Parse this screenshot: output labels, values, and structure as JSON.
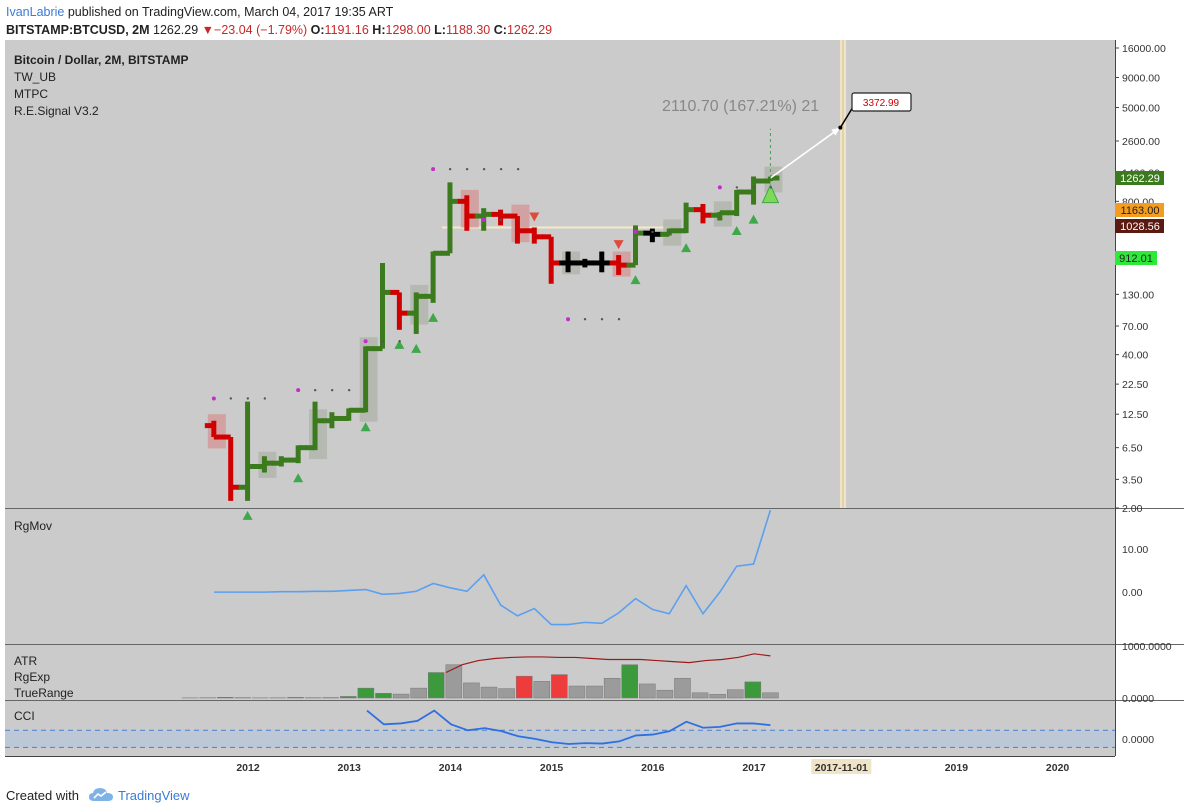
{
  "header": {
    "author": "IvanLabrie",
    "published_text": "published on TradingView.com, March 04, 2017 19:35 ART",
    "symbol": "BITSTAMP:BTCUSD, 2M",
    "last": "1262.29",
    "change": "−23.04 (−1.79%)",
    "o_label": "O:",
    "o_val": "1191.16",
    "h_label": "H:",
    "h_val": "1298.00",
    "l_label": "L:",
    "l_val": "1188.30",
    "c_label": "C:",
    "c_val": "1262.29"
  },
  "colors": {
    "background": "#cbcbcb",
    "bull": "#3c7a1e",
    "bear": "#d10000",
    "neutral": "#000000",
    "rgmov_line": "#5aa0f0",
    "atr_line": "#9b1b1b",
    "vertical_marker": "#efe3c8",
    "author": "#3a7bd5"
  },
  "chart_data": [
    {
      "type": "bar",
      "name": "main",
      "legend": [
        "Bitcoin / Dollar, 2M, BITSTAMP",
        "TW_UB",
        "MTPC",
        "R.E.Signal V3.2"
      ],
      "y_scale": "log",
      "ylim": [
        2,
        16000
      ],
      "y_ticks": [
        "16000.00",
        "9000.00",
        "5000.00",
        "2600.00",
        "1400.00",
        "800.00",
        "130.00",
        "70.00",
        "40.00",
        "22.50",
        "12.50",
        "6.50",
        "3.50",
        "2.00"
      ],
      "x_ticks": [
        "2012",
        "2013",
        "2014",
        "2015",
        "2016",
        "2017",
        "2017-11-01",
        "2019",
        "2020"
      ],
      "price_labels": {
        "last": "1262.29",
        "level1": "1163.00",
        "level2": "1028.56",
        "level3": "912.01"
      },
      "projection": {
        "text": "2110.70 (167.21%) 21",
        "target": "3372.99"
      },
      "bars": [
        {
          "d": "2011-08",
          "o": 10,
          "h": 11,
          "l": 8,
          "c": 8
        },
        {
          "d": "2011-10",
          "o": 8,
          "h": 8,
          "l": 2.3,
          "c": 3
        },
        {
          "d": "2011-12",
          "o": 3,
          "h": 16,
          "l": 2.3,
          "c": 4.5
        },
        {
          "d": "2012-02",
          "o": 4.5,
          "h": 5.5,
          "l": 4,
          "c": 4.8
        },
        {
          "d": "2012-04",
          "o": 4.8,
          "h": 5.5,
          "l": 4.5,
          "c": 5.1
        },
        {
          "d": "2012-06",
          "o": 5.1,
          "h": 6.8,
          "l": 4.8,
          "c": 6.5
        },
        {
          "d": "2012-08",
          "o": 6.5,
          "h": 16,
          "l": 6.2,
          "c": 11
        },
        {
          "d": "2012-10",
          "o": 11,
          "h": 13,
          "l": 9.5,
          "c": 11.5
        },
        {
          "d": "2012-12",
          "o": 11.5,
          "h": 14,
          "l": 11,
          "c": 13.5
        },
        {
          "d": "2013-02",
          "o": 13.5,
          "h": 47,
          "l": 13,
          "c": 45
        },
        {
          "d": "2013-04",
          "o": 45,
          "h": 240,
          "l": 45,
          "c": 135
        },
        {
          "d": "2013-06",
          "o": 135,
          "h": 135,
          "l": 65,
          "c": 90
        },
        {
          "d": "2013-08",
          "o": 90,
          "h": 135,
          "l": 60,
          "c": 125
        },
        {
          "d": "2013-10",
          "o": 125,
          "h": 300,
          "l": 110,
          "c": 290
        },
        {
          "d": "2013-12",
          "o": 290,
          "h": 1160,
          "l": 290,
          "c": 800
        },
        {
          "d": "2014-02",
          "o": 800,
          "h": 900,
          "l": 450,
          "c": 600
        },
        {
          "d": "2014-04",
          "o": 600,
          "h": 700,
          "l": 450,
          "c": 620
        },
        {
          "d": "2014-06",
          "o": 620,
          "h": 680,
          "l": 500,
          "c": 600
        },
        {
          "d": "2014-08",
          "o": 600,
          "h": 600,
          "l": 350,
          "c": 450
        },
        {
          "d": "2014-10",
          "o": 450,
          "h": 480,
          "l": 350,
          "c": 400
        },
        {
          "d": "2014-12",
          "o": 400,
          "h": 400,
          "l": 160,
          "c": 240
        },
        {
          "d": "2015-02",
          "o": 240,
          "h": 300,
          "l": 200,
          "c": 240
        },
        {
          "d": "2015-04",
          "o": 240,
          "h": 260,
          "l": 220,
          "c": 240
        },
        {
          "d": "2015-06",
          "o": 240,
          "h": 300,
          "l": 200,
          "c": 240
        },
        {
          "d": "2015-08",
          "o": 240,
          "h": 280,
          "l": 190,
          "c": 230
        },
        {
          "d": "2015-10",
          "o": 230,
          "h": 500,
          "l": 230,
          "c": 430
        },
        {
          "d": "2015-12",
          "o": 430,
          "h": 470,
          "l": 360,
          "c": 420
        },
        {
          "d": "2016-02",
          "o": 420,
          "h": 470,
          "l": 410,
          "c": 450
        },
        {
          "d": "2016-04",
          "o": 450,
          "h": 780,
          "l": 430,
          "c": 680
        },
        {
          "d": "2016-06",
          "o": 680,
          "h": 760,
          "l": 520,
          "c": 610
        },
        {
          "d": "2016-08",
          "o": 610,
          "h": 650,
          "l": 550,
          "c": 640
        },
        {
          "d": "2016-10",
          "o": 640,
          "h": 1000,
          "l": 600,
          "c": 960
        },
        {
          "d": "2016-12",
          "o": 960,
          "h": 1300,
          "l": 750,
          "c": 1190
        },
        {
          "d": "2017-02",
          "o": 1190,
          "h": 1298,
          "l": 1188,
          "c": 1262
        }
      ]
    },
    {
      "type": "line",
      "name": "RgMov",
      "legend": "RgMov",
      "ylim": [
        -12,
        19
      ],
      "y_ticks": [
        "10.00",
        "0.00"
      ],
      "values": [
        0,
        0,
        0,
        0,
        0.1,
        0.1,
        0.2,
        0.2,
        0.4,
        0.6,
        -0.5,
        -0.3,
        0.2,
        2,
        1,
        0.2,
        4,
        -3,
        -5.5,
        -3.8,
        -7.5,
        -7.5,
        -7,
        -7.2,
        -4.8,
        -1.5,
        -4,
        -5,
        1.5,
        -5,
        0,
        6,
        6.5,
        19
      ]
    },
    {
      "type": "bar",
      "name": "ATR",
      "legend": [
        "ATR",
        "RgExp",
        "TrueRange"
      ],
      "ylim": [
        0,
        1000
      ],
      "y_ticks": [
        "1000.0000",
        "0.0000"
      ],
      "values": [
        2,
        5,
        14,
        7,
        3,
        4,
        12,
        6,
        8,
        30,
        190,
        90,
        75,
        190,
        490,
        640,
        290,
        210,
        180,
        420,
        320,
        450,
        230,
        230,
        380,
        640,
        270,
        150,
        380,
        100,
        70,
        160,
        310,
        100
      ],
      "atr_line": [
        490,
        640,
        720,
        760,
        780,
        790,
        790,
        780,
        780,
        760,
        740,
        740,
        740,
        720,
        700,
        680,
        720,
        740,
        780,
        850,
        810
      ]
    },
    {
      "type": "line",
      "name": "CCI",
      "legend": "CCI",
      "ylim": [
        -200,
        430
      ],
      "y_ticks": [
        "0.0000"
      ],
      "band": [
        -100,
        100
      ],
      "values": [
        330,
        170,
        180,
        210,
        330,
        170,
        100,
        125,
        90,
        30,
        0,
        -40,
        -60,
        -50,
        -55,
        -30,
        40,
        50,
        90,
        200,
        130,
        140,
        180,
        180,
        160
      ]
    }
  ],
  "footer": {
    "created_with": "Created with",
    "brand": "TradingView"
  }
}
